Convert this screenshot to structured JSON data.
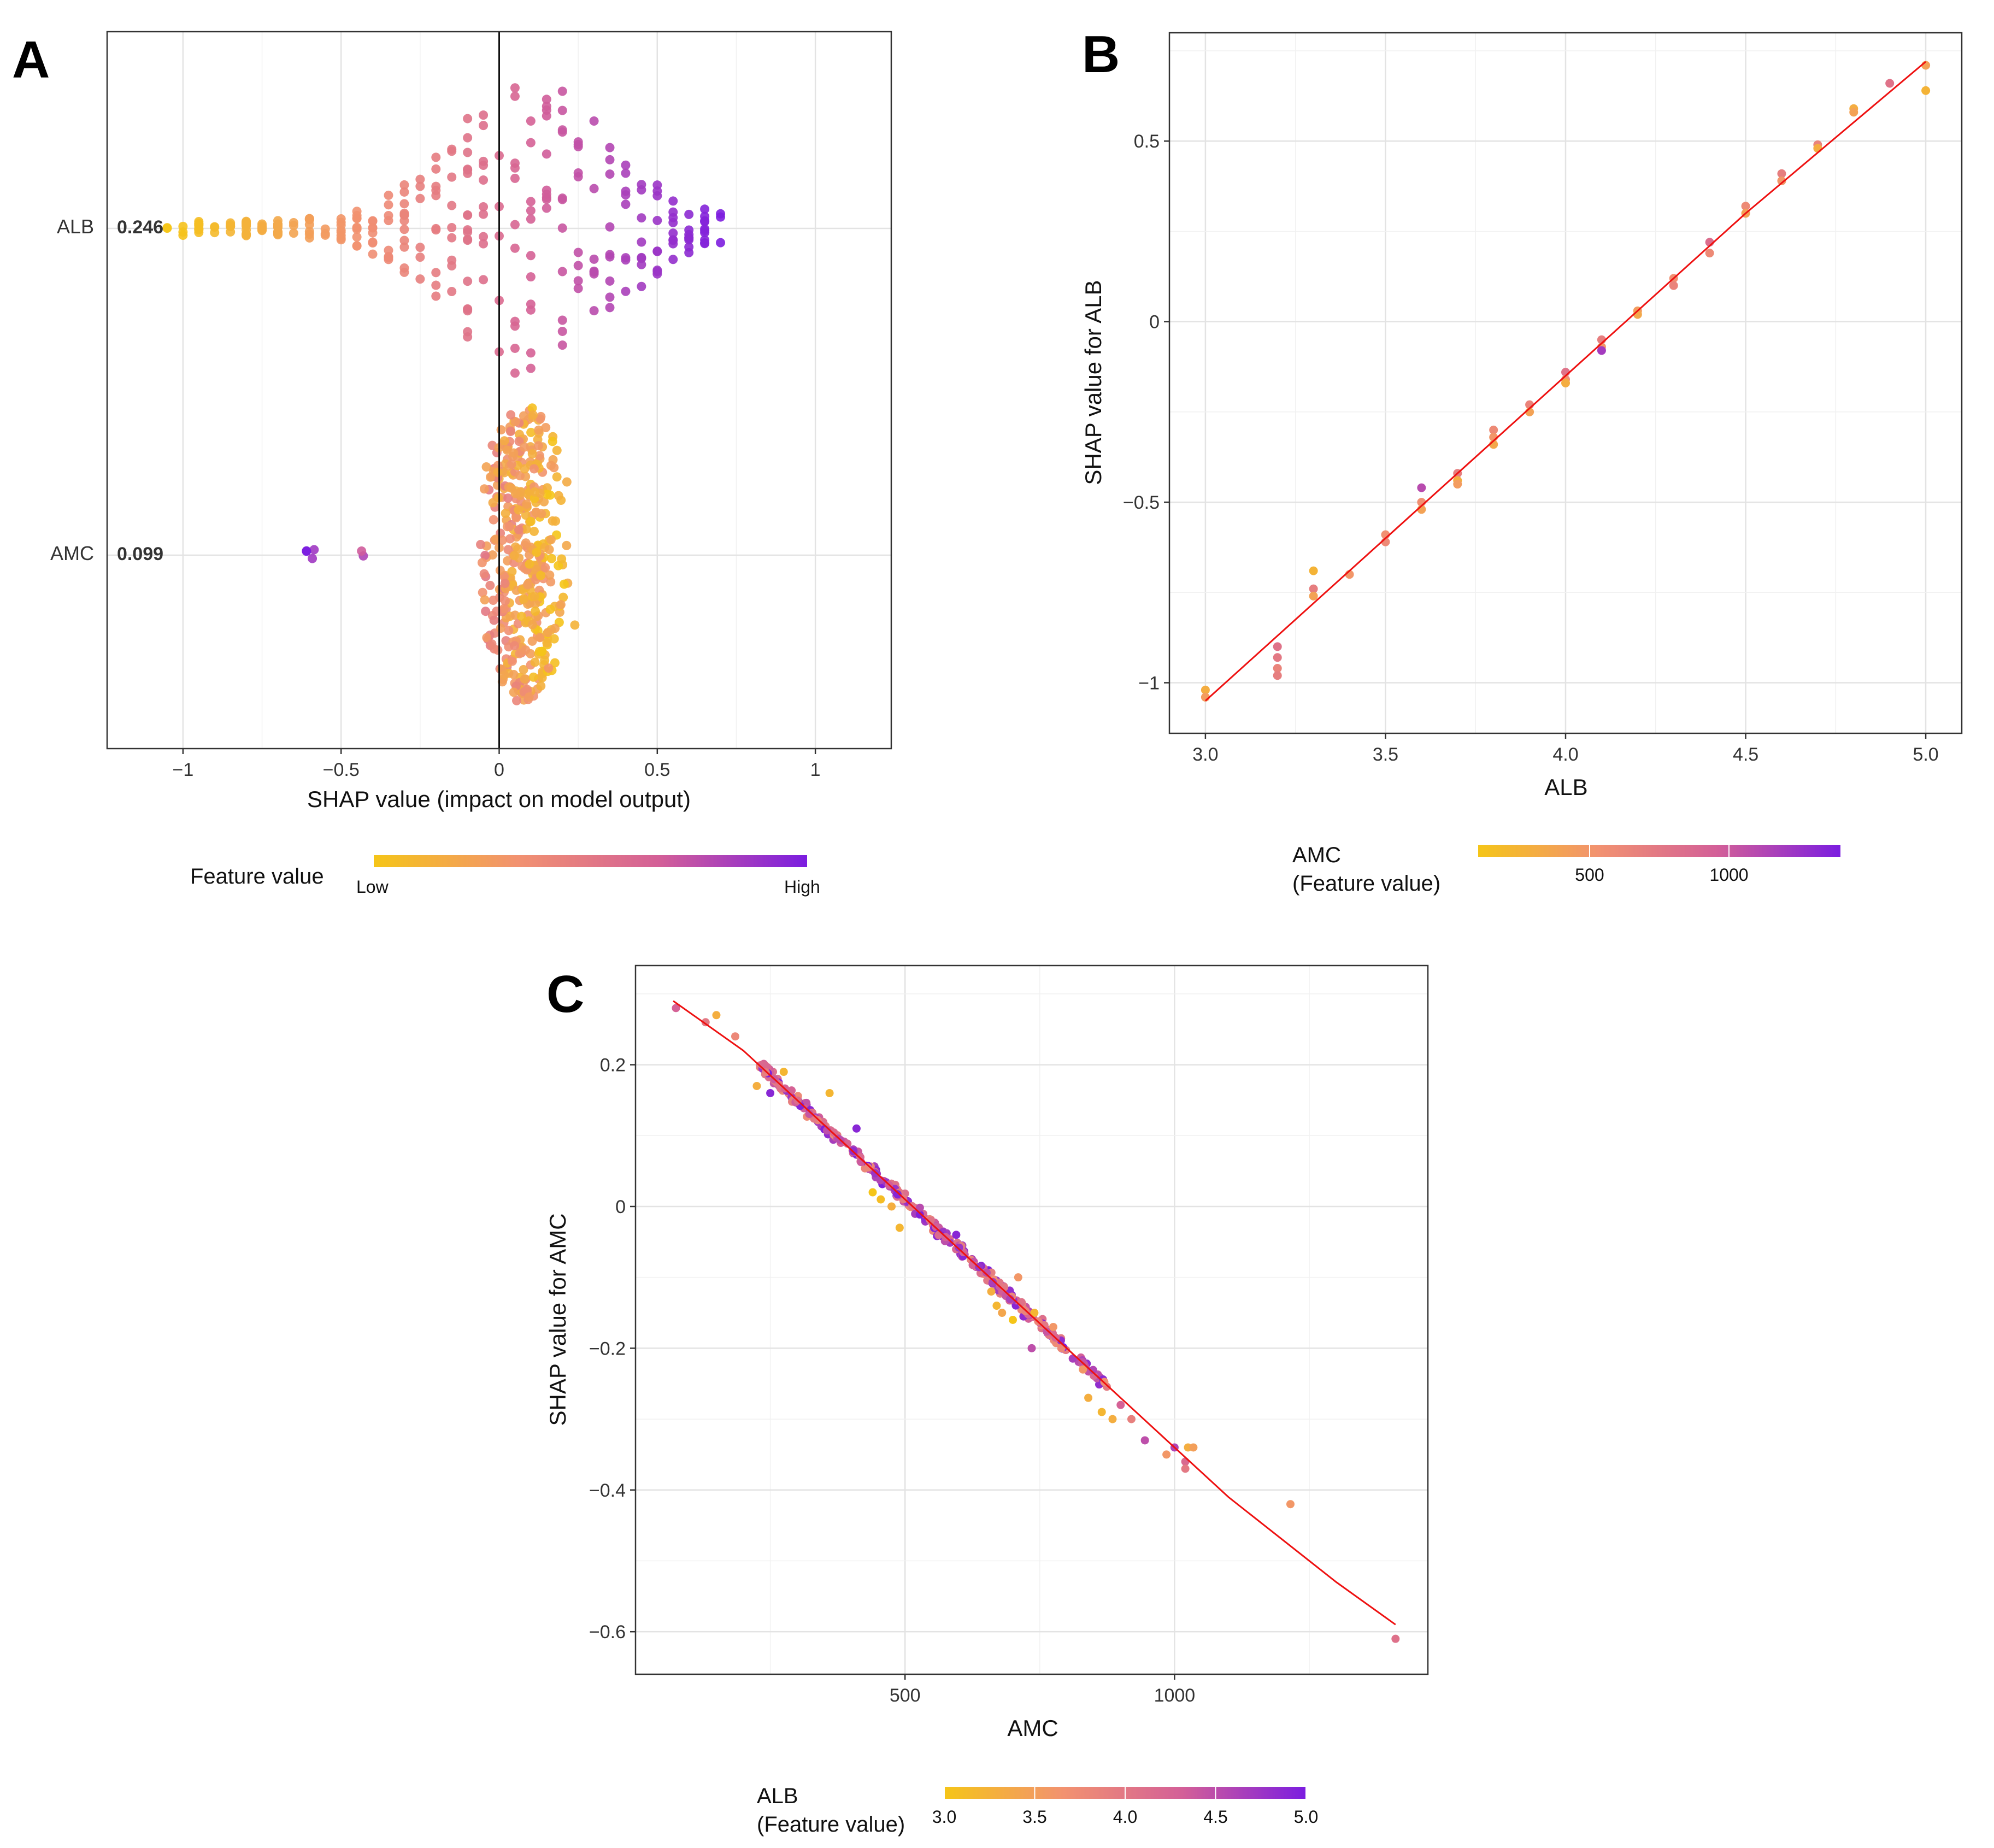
{
  "colors": {
    "low": "#f5c518",
    "mid": "#f29270",
    "midhigh": "#d35f98",
    "high": "#7b1de0",
    "fit_line": "#ee1111"
  },
  "panels": {
    "A": {
      "letter": "A"
    },
    "B": {
      "letter": "B"
    },
    "C": {
      "letter": "C"
    }
  },
  "chart_data": [
    {
      "id": "A",
      "type": "scatter",
      "subtype": "shap-beeswarm",
      "title": "",
      "xlabel": "SHAP value (impact on model output)",
      "ylabel": "",
      "xlim": [
        -1.24,
        1.24
      ],
      "xticks": [
        -1,
        -0.5,
        0,
        0.5,
        1
      ],
      "xtick_labels": [
        "−1",
        "−0.5",
        "0",
        "0.5",
        "1"
      ],
      "features": [
        {
          "name": "ALB",
          "mean_abs_shap": "0.246",
          "shap_range": [
            -1.03,
            0.71
          ],
          "jitter_spread": 0.33
        },
        {
          "name": "AMC",
          "mean_abs_shap": "0.099",
          "shap_range": [
            -0.61,
            0.29
          ],
          "jitter_spread": 0.33
        }
      ],
      "legend": {
        "title": "Feature value",
        "low_label": "Low",
        "high_label": "High",
        "placement": "bottom"
      }
    },
    {
      "id": "B",
      "type": "scatter",
      "title": "",
      "xlabel": "ALB",
      "ylabel": "SHAP value for ALB",
      "xlim": [
        2.9,
        5.1
      ],
      "ylim": [
        -1.14,
        0.8
      ],
      "xticks": [
        3.0,
        3.5,
        4.0,
        4.5,
        5.0
      ],
      "xtick_labels": [
        "3.0",
        "3.5",
        "4.0",
        "4.5",
        "5.0"
      ],
      "yticks": [
        -1,
        -0.5,
        0,
        0.5
      ],
      "ytick_labels": [
        "−1",
        "−0.5",
        "0",
        "0.5"
      ],
      "fit_line": {
        "x": [
          3.0,
          3.5,
          4.0,
          4.5,
          5.0
        ],
        "y": [
          -1.05,
          -0.6,
          -0.15,
          0.3,
          0.72
        ]
      },
      "points": [
        {
          "x": 3.0,
          "y": -1.02,
          "c": 300
        },
        {
          "x": 3.0,
          "y": -1.04,
          "c": 450
        },
        {
          "x": 3.2,
          "y": -0.9,
          "c": 800
        },
        {
          "x": 3.2,
          "y": -0.93,
          "c": 750
        },
        {
          "x": 3.2,
          "y": -0.96,
          "c": 650
        },
        {
          "x": 3.2,
          "y": -0.98,
          "c": 700
        },
        {
          "x": 3.3,
          "y": -0.69,
          "c": 250
        },
        {
          "x": 3.3,
          "y": -0.74,
          "c": 700
        },
        {
          "x": 3.3,
          "y": -0.76,
          "c": 400
        },
        {
          "x": 3.4,
          "y": -0.7,
          "c": 500
        },
        {
          "x": 3.5,
          "y": -0.59,
          "c": 550
        },
        {
          "x": 3.5,
          "y": -0.61,
          "c": 600
        },
        {
          "x": 3.6,
          "y": -0.46,
          "c": 1100
        },
        {
          "x": 3.6,
          "y": -0.5,
          "c": 550
        },
        {
          "x": 3.6,
          "y": -0.52,
          "c": 400
        },
        {
          "x": 3.7,
          "y": -0.42,
          "c": 700
        },
        {
          "x": 3.7,
          "y": -0.44,
          "c": 300
        },
        {
          "x": 3.7,
          "y": -0.45,
          "c": 450
        },
        {
          "x": 3.8,
          "y": -0.3,
          "c": 600
        },
        {
          "x": 3.8,
          "y": -0.32,
          "c": 500
        },
        {
          "x": 3.8,
          "y": -0.34,
          "c": 350
        },
        {
          "x": 3.9,
          "y": -0.23,
          "c": 650
        },
        {
          "x": 3.9,
          "y": -0.25,
          "c": 400
        },
        {
          "x": 4.0,
          "y": -0.14,
          "c": 800
        },
        {
          "x": 4.0,
          "y": -0.16,
          "c": 550
        },
        {
          "x": 4.0,
          "y": -0.17,
          "c": 300
        },
        {
          "x": 4.1,
          "y": -0.05,
          "c": 700
        },
        {
          "x": 4.1,
          "y": -0.07,
          "c": 500
        },
        {
          "x": 4.1,
          "y": -0.08,
          "c": 1200
        },
        {
          "x": 4.2,
          "y": 0.03,
          "c": 450
        },
        {
          "x": 4.2,
          "y": 0.02,
          "c": 350
        },
        {
          "x": 4.3,
          "y": 0.12,
          "c": 550
        },
        {
          "x": 4.3,
          "y": 0.1,
          "c": 650
        },
        {
          "x": 4.4,
          "y": 0.22,
          "c": 850
        },
        {
          "x": 4.4,
          "y": 0.19,
          "c": 600
        },
        {
          "x": 4.5,
          "y": 0.32,
          "c": 600
        },
        {
          "x": 4.5,
          "y": 0.3,
          "c": 400
        },
        {
          "x": 4.6,
          "y": 0.41,
          "c": 700
        },
        {
          "x": 4.6,
          "y": 0.39,
          "c": 500
        },
        {
          "x": 4.7,
          "y": 0.49,
          "c": 650
        },
        {
          "x": 4.7,
          "y": 0.48,
          "c": 300
        },
        {
          "x": 4.8,
          "y": 0.59,
          "c": 300
        },
        {
          "x": 4.8,
          "y": 0.58,
          "c": 400
        },
        {
          "x": 4.9,
          "y": 0.66,
          "c": 800
        },
        {
          "x": 5.0,
          "y": 0.71,
          "c": 400
        },
        {
          "x": 5.0,
          "y": 0.64,
          "c": 250
        }
      ],
      "legend": {
        "title_line1": "AMC",
        "title_line2": "(Feature value)",
        "ticks": [
          500,
          1000
        ],
        "tick_labels": [
          "500",
          "1000"
        ],
        "range": [
          100,
          1400
        ],
        "placement": "bottom"
      }
    },
    {
      "id": "C",
      "type": "scatter",
      "title": "",
      "xlabel": "AMC",
      "ylabel": "SHAP value for AMC",
      "xlim": [
        0,
        1470
      ],
      "ylim": [
        -0.66,
        0.34
      ],
      "xticks": [
        500,
        1000
      ],
      "xtick_labels": [
        "500",
        "1000"
      ],
      "yticks": [
        -0.6,
        -0.4,
        -0.2,
        0,
        0.2
      ],
      "ytick_labels": [
        "−0.6",
        "−0.4",
        "−0.2",
        "0",
        "0.2"
      ],
      "fit_line": {
        "x": [
          70,
          200,
          300,
          400,
          500,
          600,
          700,
          800,
          900,
          1000,
          1100,
          1200,
          1300,
          1410
        ],
        "y": [
          0.29,
          0.22,
          0.15,
          0.08,
          0.01,
          -0.06,
          -0.13,
          -0.2,
          -0.27,
          -0.34,
          -0.41,
          -0.47,
          -0.53,
          -0.59
        ]
      },
      "points": [
        {
          "x": 75,
          "y": 0.28,
          "c": 4.3
        },
        {
          "x": 130,
          "y": 0.26,
          "c": 4.0
        },
        {
          "x": 150,
          "y": 0.27,
          "c": 3.3
        },
        {
          "x": 185,
          "y": 0.24,
          "c": 3.8
        },
        {
          "x": 225,
          "y": 0.17,
          "c": 3.3
        },
        {
          "x": 235,
          "y": 0.2,
          "c": 4.2
        },
        {
          "x": 250,
          "y": 0.16,
          "c": 4.9
        },
        {
          "x": 275,
          "y": 0.19,
          "c": 3.2
        },
        {
          "x": 360,
          "y": 0.16,
          "c": 3.2
        },
        {
          "x": 410,
          "y": 0.11,
          "c": 4.9
        },
        {
          "x": 440,
          "y": 0.02,
          "c": 3.0
        },
        {
          "x": 455,
          "y": 0.01,
          "c": 3.1
        },
        {
          "x": 475,
          "y": 0.0,
          "c": 3.3
        },
        {
          "x": 490,
          "y": -0.03,
          "c": 3.2
        },
        {
          "x": 595,
          "y": -0.04,
          "c": 4.9
        },
        {
          "x": 660,
          "y": -0.12,
          "c": 3.3
        },
        {
          "x": 670,
          "y": -0.14,
          "c": 3.2
        },
        {
          "x": 680,
          "y": -0.15,
          "c": 3.4
        },
        {
          "x": 700,
          "y": -0.16,
          "c": 3.0
        },
        {
          "x": 710,
          "y": -0.1,
          "c": 3.6
        },
        {
          "x": 735,
          "y": -0.2,
          "c": 4.5
        },
        {
          "x": 740,
          "y": -0.15,
          "c": 3.2
        },
        {
          "x": 775,
          "y": -0.17,
          "c": 3.6
        },
        {
          "x": 790,
          "y": -0.2,
          "c": 3.8
        },
        {
          "x": 830,
          "y": -0.23,
          "c": 3.6
        },
        {
          "x": 840,
          "y": -0.27,
          "c": 3.3
        },
        {
          "x": 865,
          "y": -0.29,
          "c": 3.2
        },
        {
          "x": 885,
          "y": -0.3,
          "c": 3.3
        },
        {
          "x": 900,
          "y": -0.28,
          "c": 4.3
        },
        {
          "x": 920,
          "y": -0.3,
          "c": 3.9
        },
        {
          "x": 945,
          "y": -0.33,
          "c": 4.5
        },
        {
          "x": 985,
          "y": -0.35,
          "c": 3.6
        },
        {
          "x": 1000,
          "y": -0.34,
          "c": 4.6
        },
        {
          "x": 1020,
          "y": -0.36,
          "c": 4.2
        },
        {
          "x": 1025,
          "y": -0.34,
          "c": 3.3
        },
        {
          "x": 1035,
          "y": -0.34,
          "c": 3.5
        },
        {
          "x": 1020,
          "y": -0.37,
          "c": 4.0
        },
        {
          "x": 1215,
          "y": -0.42,
          "c": 3.6
        },
        {
          "x": 1410,
          "y": -0.61,
          "c": 4.1
        }
      ],
      "dense_band": {
        "x_range": [
          230,
          880
        ],
        "count": 320,
        "noise": 0.012
      },
      "legend": {
        "title_line1": "ALB",
        "title_line2": "(Feature value)",
        "ticks": [
          3.0,
          3.5,
          4.0,
          4.5,
          5.0
        ],
        "tick_labels": [
          "3.0",
          "3.5",
          "4.0",
          "4.5",
          "5.0"
        ],
        "range": [
          3.0,
          5.0
        ],
        "placement": "bottom"
      }
    }
  ]
}
